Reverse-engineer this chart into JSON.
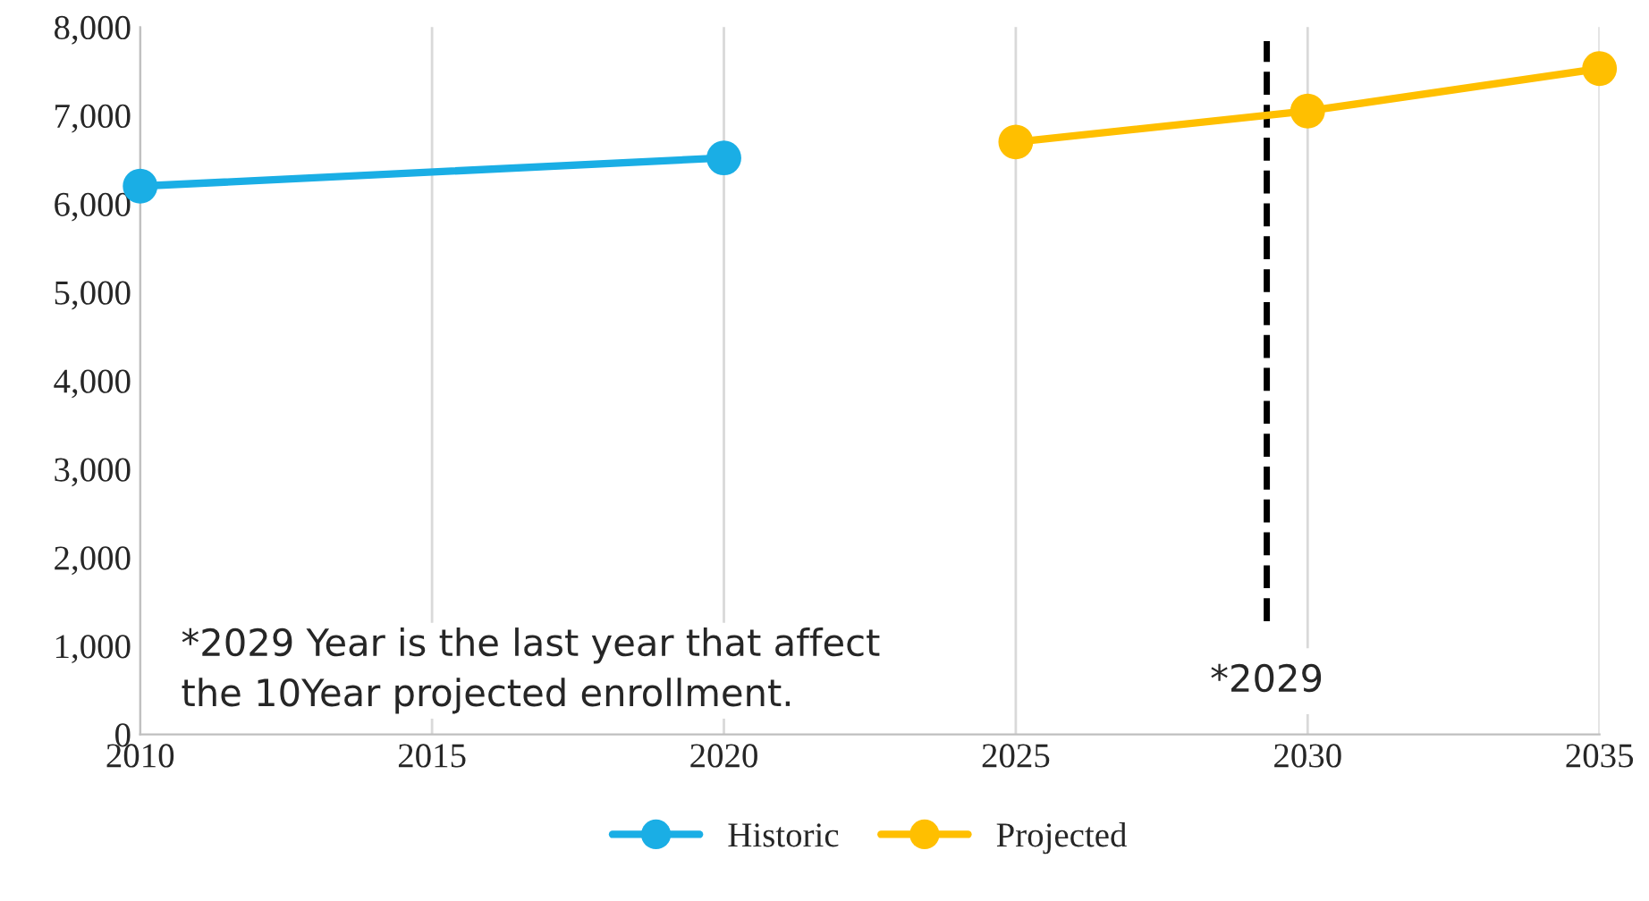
{
  "chart_data": {
    "type": "line",
    "series": [
      {
        "name": "Historic",
        "color": "#1aaee5",
        "x": [
          2010,
          2020
        ],
        "values": [
          6200,
          6520
        ]
      },
      {
        "name": "Projected",
        "color": "#ffbf00",
        "x": [
          2025,
          2030,
          2035
        ],
        "values": [
          6700,
          7050,
          7530
        ]
      }
    ],
    "xlim": [
      2010,
      2035
    ],
    "xticks": [
      2010,
      2015,
      2020,
      2025,
      2030,
      2035
    ],
    "ylim": [
      0,
      8000
    ],
    "yticks": [
      {
        "value": 0,
        "label": "0"
      },
      {
        "value": 1000,
        "label": "1,000"
      },
      {
        "value": 2000,
        "label": "2,000"
      },
      {
        "value": 3000,
        "label": "3,000"
      },
      {
        "value": 4000,
        "label": "4,000"
      },
      {
        "value": 5000,
        "label": "5,000"
      },
      {
        "value": 6000,
        "label": "6,000"
      },
      {
        "value": 7000,
        "label": "7,000"
      },
      {
        "value": 8000,
        "label": "8,000"
      }
    ],
    "ref_lines": [
      {
        "axis": "x",
        "value": 2029.3,
        "label": "*2029",
        "color": "#000000",
        "line_style": "dashed"
      }
    ],
    "annotations": [
      "*2029 Year is the last year that affect\nthe 10Year projected enrollment."
    ],
    "grid": "x",
    "legend": "bottom",
    "marker": "circle",
    "line_style": "solid"
  }
}
